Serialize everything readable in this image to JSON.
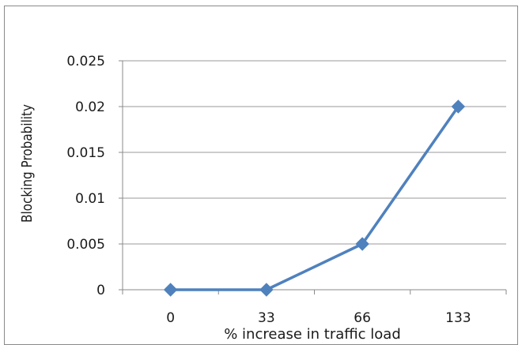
{
  "chart_data": {
    "type": "line",
    "title": "",
    "xlabel": "% increase in traffic load",
    "ylabel": "Blocking Probability",
    "categories": [
      "0",
      "33",
      "66",
      "133"
    ],
    "series": [
      {
        "values": [
          0,
          0,
          0.005,
          0.02
        ]
      }
    ],
    "y_ticks": [
      "0",
      "0.005",
      "0.01",
      "0.015",
      "0.02",
      "0.025"
    ],
    "ylim": [
      0,
      0.025
    ],
    "grid": true,
    "legend": "none",
    "line_color": "#4f81bd"
  }
}
